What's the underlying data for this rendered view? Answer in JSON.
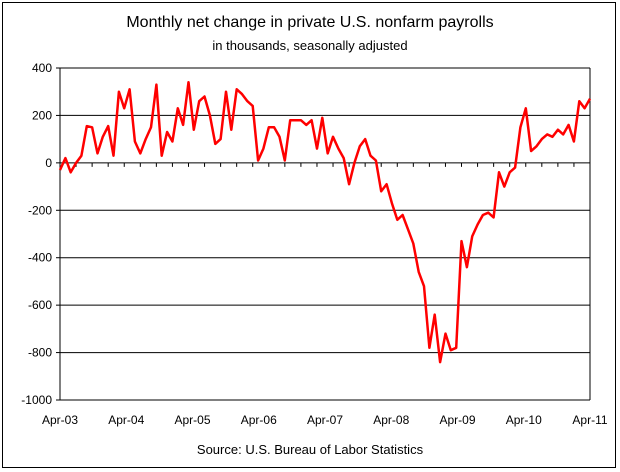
{
  "chart_data": {
    "type": "line",
    "title": "Monthly net change in private U.S. nonfarm payrolls",
    "subtitle": "in thousands, seasonally adjusted",
    "source": "Source: U.S. Bureau of Labor Statistics",
    "xlabel": "",
    "ylabel": "",
    "ylim": [
      -1000,
      400
    ],
    "yticks": [
      400,
      200,
      0,
      -200,
      -400,
      -600,
      -800,
      -1000
    ],
    "x_tick_labels": [
      "Apr-03",
      "Apr-04",
      "Apr-05",
      "Apr-06",
      "Apr-07",
      "Apr-08",
      "Apr-09",
      "Apr-10",
      "Apr-11"
    ],
    "x_start": "Apr-03",
    "x_end": "Apr-11",
    "grid": true,
    "line_color": "#ff0000",
    "series": [
      {
        "values": [
          -30,
          20,
          -40,
          0,
          30,
          155,
          150,
          40,
          110,
          155,
          30,
          300,
          230,
          310,
          90,
          40,
          100,
          150,
          330,
          30,
          130,
          90,
          230,
          160,
          340,
          140,
          260,
          280,
          200,
          80,
          100,
          300,
          140,
          310,
          290,
          260,
          240,
          10,
          60,
          150,
          150,
          110,
          10,
          180,
          180,
          180,
          160,
          180,
          60,
          190,
          40,
          110,
          60,
          20,
          -90,
          0,
          70,
          100,
          30,
          10,
          -120,
          -90,
          -170,
          -240,
          -220,
          -280,
          -340,
          -460,
          -520,
          -780,
          -640,
          -840,
          -720,
          -790,
          -780,
          -330,
          -440,
          -310,
          -260,
          -220,
          -210,
          -230,
          -40,
          -100,
          -40,
          -20,
          150,
          230,
          50,
          70,
          100,
          120,
          110,
          140,
          120,
          160,
          90,
          260,
          230,
          270
        ]
      }
    ]
  }
}
